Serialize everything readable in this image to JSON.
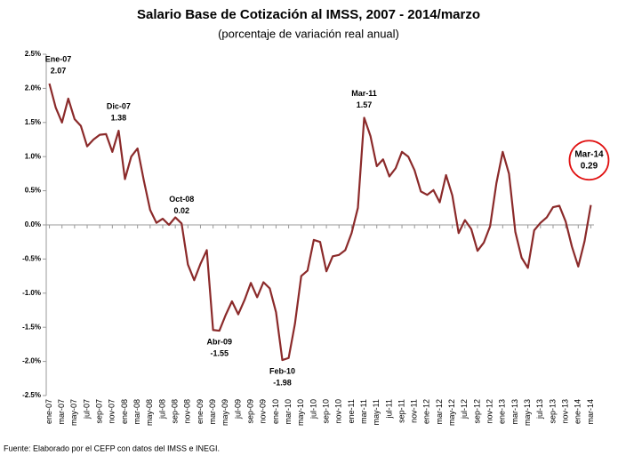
{
  "chart_data": {
    "type": "line",
    "title": "Salario Base de Cotización al IMSS, 2007 - 2014/marzo",
    "subtitle": "(porcentaje de variación real anual)",
    "source": "Fuente: Elaborado por el CEFP con datos del IMSS e INEGI.",
    "categories": [
      "ene-07",
      null,
      "mar-07",
      null,
      "may-07",
      null,
      "jul-07",
      null,
      "sep-07",
      null,
      "nov-07",
      null,
      "ene-08",
      null,
      "mar-08",
      null,
      "may-08",
      null,
      "jul-08",
      null,
      "sep-08",
      null,
      "nov-08",
      null,
      "ene-09",
      null,
      "mar-09",
      null,
      "may-09",
      null,
      "jul-09",
      null,
      "sep-09",
      null,
      "nov-09",
      null,
      "ene-10",
      null,
      "mar-10",
      null,
      "may-10",
      null,
      "jul-10",
      null,
      "sep-10",
      null,
      "nov-10",
      null,
      "ene-11",
      null,
      "mar-11",
      null,
      "may-11",
      null,
      "jul-11",
      null,
      "sep-11",
      null,
      "nov-11",
      null,
      "ene-12",
      null,
      "mar-12",
      null,
      "may-12",
      null,
      "jul-12",
      null,
      "sep-12",
      null,
      "nov-12",
      null,
      "ene-13",
      null,
      "mar-13",
      null,
      "may-13",
      null,
      "jul-13",
      null,
      "sep-13",
      null,
      "nov-13",
      null,
      "ene-14",
      null,
      "mar-14"
    ],
    "series": [
      {
        "color": "#8b2a2a",
        "values": [
          2.07,
          1.72,
          1.5,
          1.85,
          1.55,
          1.45,
          1.15,
          1.25,
          1.32,
          1.33,
          1.07,
          1.38,
          0.67,
          1.0,
          1.12,
          0.65,
          0.22,
          0.03,
          0.09,
          0.0,
          0.11,
          0.02,
          -0.58,
          -0.81,
          -0.57,
          -0.37,
          -1.54,
          -1.55,
          -1.32,
          -1.12,
          -1.31,
          -1.1,
          -0.85,
          -1.06,
          -0.84,
          -0.93,
          -1.28,
          -1.98,
          -1.95,
          -1.45,
          -0.75,
          -0.67,
          -0.22,
          -0.25,
          -0.68,
          -0.46,
          -0.44,
          -0.37,
          -0.12,
          0.25,
          1.57,
          1.3,
          0.86,
          0.96,
          0.71,
          0.83,
          1.07,
          1.0,
          0.8,
          0.49,
          0.44,
          0.51,
          0.33,
          0.73,
          0.43,
          -0.12,
          0.07,
          -0.06,
          -0.38,
          -0.26,
          -0.02,
          0.61,
          1.07,
          0.75,
          -0.1,
          -0.48,
          -0.63,
          -0.08,
          0.03,
          0.11,
          0.26,
          0.28,
          0.05,
          -0.32,
          -0.61,
          -0.24,
          0.29
        ]
      }
    ],
    "annotations": [
      {
        "label": "Ene-07",
        "value": 2.07
      },
      {
        "label": "Dic-07",
        "value": 1.38
      },
      {
        "label": "Oct-08",
        "value": 0.02
      },
      {
        "label": "Abr-09",
        "value": -1.55
      },
      {
        "label": "Feb-10",
        "value": -1.98
      },
      {
        "label": "Mar-11",
        "value": 1.57
      },
      {
        "label": "Mar-14",
        "value": 0.29,
        "circled": true
      }
    ],
    "ylim": [
      -2.5,
      2.5
    ],
    "yticks": [
      {
        "value": -2.5,
        "label": "-2.5%"
      },
      {
        "value": -2.0,
        "label": "-2.0%"
      },
      {
        "value": -1.5,
        "label": "-1.5%"
      },
      {
        "value": -1.0,
        "label": "-1.0%"
      },
      {
        "value": -0.5,
        "label": "-0.5%"
      },
      {
        "value": 0,
        "label": "0.0%"
      },
      {
        "value": 0.5,
        "label": "0.5%"
      },
      {
        "value": 1.0,
        "label": "1.0%"
      },
      {
        "value": 1.5,
        "label": "1.5%"
      },
      {
        "value": 2.0,
        "label": "2.0%"
      },
      {
        "value": 2.5,
        "label": "2.5%"
      }
    ],
    "grid": false
  }
}
